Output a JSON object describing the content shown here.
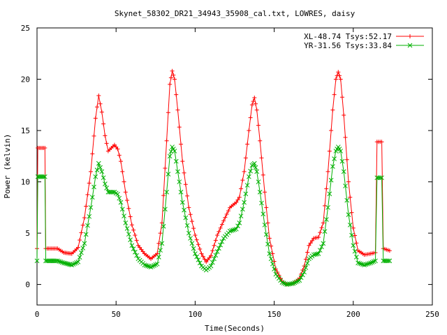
{
  "chart_data": {
    "type": "line",
    "title": "Skynet_58302_DR21_34943_35908_cal.txt, LOWRES, daisy",
    "xlabel": "Time(Seconds)",
    "ylabel": "Power (kelvin)",
    "xlim": [
      0,
      250
    ],
    "ylim": [
      -2,
      25
    ],
    "xticks": [
      0,
      50,
      100,
      150,
      200,
      250
    ],
    "yticks": [
      0,
      5,
      10,
      15,
      20,
      25
    ],
    "legend_position": "top-right",
    "series": [
      {
        "name": "XL-48.74 Tsys:52.17",
        "color": "#ff0000",
        "marker": "plus",
        "points": [
          [
            0,
            3.5
          ],
          [
            0.5,
            13.3
          ],
          [
            5,
            13.3
          ],
          [
            5.5,
            3.5
          ],
          [
            13,
            3.5
          ],
          [
            17,
            3.1
          ],
          [
            22,
            3.0
          ],
          [
            26,
            3.6
          ],
          [
            30,
            6.5
          ],
          [
            34,
            11.0
          ],
          [
            37,
            16.2
          ],
          [
            39,
            18.4
          ],
          [
            41,
            16.8
          ],
          [
            43,
            14.5
          ],
          [
            45,
            13.0
          ],
          [
            47,
            13.3
          ],
          [
            49,
            13.6
          ],
          [
            51,
            13.2
          ],
          [
            53,
            12.0
          ],
          [
            56,
            9.0
          ],
          [
            60,
            5.8
          ],
          [
            64,
            3.8
          ],
          [
            68,
            3.0
          ],
          [
            72,
            2.5
          ],
          [
            76,
            3.0
          ],
          [
            79,
            6.0
          ],
          [
            82,
            14.0
          ],
          [
            84,
            19.5
          ],
          [
            85.5,
            20.8
          ],
          [
            87,
            20.0
          ],
          [
            89,
            17.0
          ],
          [
            92,
            12.0
          ],
          [
            96,
            7.5
          ],
          [
            100,
            4.8
          ],
          [
            104,
            3.0
          ],
          [
            107,
            2.2
          ],
          [
            110,
            2.8
          ],
          [
            114,
            4.8
          ],
          [
            118,
            6.2
          ],
          [
            122,
            7.5
          ],
          [
            126,
            8.0
          ],
          [
            128,
            8.5
          ],
          [
            131,
            11.0
          ],
          [
            134,
            15.0
          ],
          [
            136,
            17.5
          ],
          [
            137.5,
            18.2
          ],
          [
            139,
            17.0
          ],
          [
            141,
            14.0
          ],
          [
            144,
            9.0
          ],
          [
            147,
            4.5
          ],
          [
            151,
            1.5
          ],
          [
            155,
            0.3
          ],
          [
            158,
            0.0
          ],
          [
            162,
            0.1
          ],
          [
            166,
            0.6
          ],
          [
            169,
            1.8
          ],
          [
            172,
            3.8
          ],
          [
            175,
            4.5
          ],
          [
            178,
            4.6
          ],
          [
            181,
            6.0
          ],
          [
            184,
            11.0
          ],
          [
            187,
            17.0
          ],
          [
            189,
            20.0
          ],
          [
            190.5,
            20.7
          ],
          [
            192,
            20.0
          ],
          [
            194,
            16.5
          ],
          [
            197,
            10.0
          ],
          [
            200,
            5.5
          ],
          [
            203,
            3.3
          ],
          [
            207,
            2.9
          ],
          [
            211,
            3.0
          ],
          [
            214,
            3.1
          ],
          [
            215,
            13.9
          ],
          [
            218,
            13.9
          ],
          [
            219,
            3.5
          ],
          [
            223,
            3.3
          ]
        ]
      },
      {
        "name": "YR-31.56 Tsys:33.84",
        "color": "#00b000",
        "marker": "cross",
        "points": [
          [
            0,
            2.3
          ],
          [
            0.5,
            10.5
          ],
          [
            5,
            10.5
          ],
          [
            5.5,
            2.3
          ],
          [
            13,
            2.3
          ],
          [
            17,
            2.1
          ],
          [
            22,
            1.9
          ],
          [
            26,
            2.2
          ],
          [
            30,
            4.0
          ],
          [
            34,
            7.5
          ],
          [
            37,
            10.5
          ],
          [
            39,
            11.8
          ],
          [
            41,
            11.0
          ],
          [
            43,
            9.8
          ],
          [
            45,
            9.0
          ],
          [
            47,
            9.0
          ],
          [
            49,
            9.0
          ],
          [
            51,
            8.8
          ],
          [
            53,
            8.0
          ],
          [
            56,
            6.0
          ],
          [
            60,
            3.8
          ],
          [
            64,
            2.5
          ],
          [
            68,
            1.9
          ],
          [
            72,
            1.7
          ],
          [
            76,
            2.0
          ],
          [
            79,
            4.0
          ],
          [
            82,
            9.0
          ],
          [
            84,
            12.5
          ],
          [
            85.5,
            13.4
          ],
          [
            87,
            13.0
          ],
          [
            89,
            11.0
          ],
          [
            92,
            8.0
          ],
          [
            96,
            5.0
          ],
          [
            100,
            3.0
          ],
          [
            104,
            1.8
          ],
          [
            107,
            1.4
          ],
          [
            110,
            1.8
          ],
          [
            114,
            3.2
          ],
          [
            118,
            4.5
          ],
          [
            122,
            5.2
          ],
          [
            126,
            5.4
          ],
          [
            128,
            6.0
          ],
          [
            131,
            8.0
          ],
          [
            134,
            10.5
          ],
          [
            136,
            11.6
          ],
          [
            137.5,
            11.8
          ],
          [
            139,
            11.0
          ],
          [
            141,
            9.0
          ],
          [
            144,
            5.8
          ],
          [
            147,
            3.0
          ],
          [
            151,
            1.0
          ],
          [
            155,
            0.2
          ],
          [
            158,
            0.0
          ],
          [
            162,
            0.1
          ],
          [
            166,
            0.4
          ],
          [
            169,
            1.2
          ],
          [
            172,
            2.5
          ],
          [
            175,
            2.9
          ],
          [
            178,
            3.0
          ],
          [
            181,
            4.0
          ],
          [
            184,
            7.5
          ],
          [
            187,
            11.5
          ],
          [
            189,
            13.0
          ],
          [
            190.5,
            13.4
          ],
          [
            192,
            13.0
          ],
          [
            194,
            11.0
          ],
          [
            197,
            6.8
          ],
          [
            200,
            3.8
          ],
          [
            203,
            2.1
          ],
          [
            207,
            1.9
          ],
          [
            211,
            2.1
          ],
          [
            214,
            2.3
          ],
          [
            215,
            10.4
          ],
          [
            218,
            10.4
          ],
          [
            219,
            2.3
          ],
          [
            223,
            2.3
          ]
        ]
      }
    ]
  }
}
